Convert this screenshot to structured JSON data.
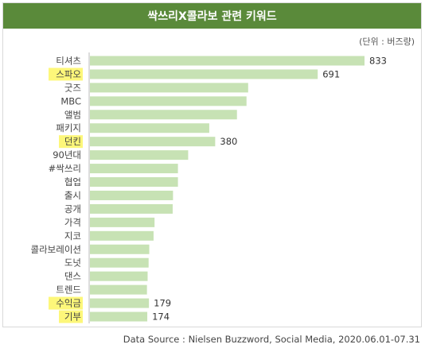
{
  "title": "싹쓰리X콜라보 관련 키워드",
  "unit": "(단위 : 버즈량)",
  "source": "Data Source : Nielsen Buzzword, Social Media, 2020.06.01-07.31",
  "colors": {
    "header": "#5a8a3a",
    "bar": "#c7e2b4",
    "highlight": "#fdf77a"
  },
  "chart_data": {
    "type": "bar",
    "orientation": "horizontal",
    "categories": [
      "티셔츠",
      "스파오",
      "굿즈",
      "MBC",
      "앨범",
      "패키지",
      "던킨",
      "90년대",
      "#싹쓰리",
      "협업",
      "출시",
      "공개",
      "가격",
      "지코",
      "콜라보레이션",
      "도넛",
      "댄스",
      "트렌드",
      "수익금",
      "기부"
    ],
    "values": [
      833,
      691,
      480,
      475,
      446,
      362,
      380,
      298,
      267,
      267,
      252,
      251,
      196,
      193,
      180,
      178,
      175,
      173,
      179,
      174
    ],
    "data_labels": [
      "833",
      "691",
      "",
      "",
      "",
      "",
      "380",
      "",
      "",
      "",
      "",
      "",
      "",
      "",
      "",
      "",
      "",
      "",
      "179",
      "174"
    ],
    "highlighted": [
      "스파오",
      "던킨",
      "수익금",
      "기부"
    ],
    "xlim": [
      0,
      900
    ]
  }
}
